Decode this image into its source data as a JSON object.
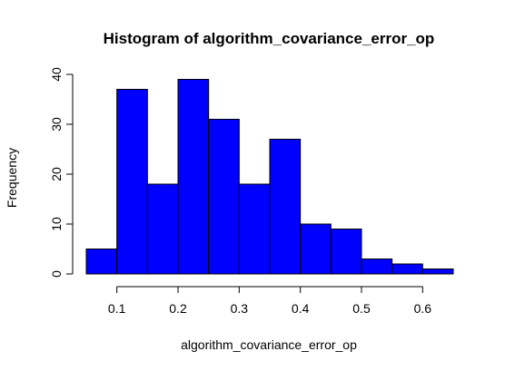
{
  "chart_data": {
    "type": "bar",
    "title": "Histogram of algorithm_covariance_error_op",
    "xlabel": "algorithm_covariance_error_op",
    "ylabel": "Frequency",
    "bin_edges": [
      0.05,
      0.1,
      0.15,
      0.2,
      0.25,
      0.3,
      0.35,
      0.4,
      0.45,
      0.5,
      0.55,
      0.6,
      0.65
    ],
    "values": [
      5,
      37,
      18,
      39,
      31,
      18,
      27,
      10,
      9,
      3,
      2,
      1
    ],
    "xlim": [
      0.05,
      0.65
    ],
    "ylim": [
      0,
      40
    ],
    "x_ticks": [
      "0.1",
      "0.2",
      "0.3",
      "0.4",
      "0.5",
      "0.6"
    ],
    "y_ticks": [
      "0",
      "10",
      "20",
      "30",
      "40"
    ],
    "grid": false,
    "bar_color": "#0000ff",
    "bar_border_color": "#000000"
  }
}
